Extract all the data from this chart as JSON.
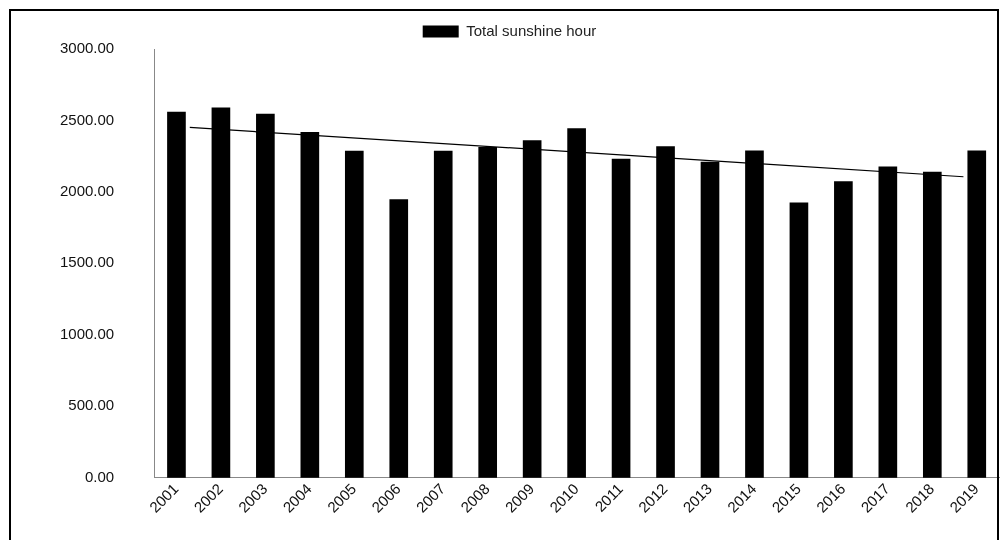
{
  "chart_data": {
    "type": "bar",
    "x": [
      2001,
      2002,
      2003,
      2004,
      2005,
      2006,
      2007,
      2008,
      2009,
      2010,
      2011,
      2012,
      2013,
      2014,
      2015,
      2016,
      2017,
      2018,
      2019
    ],
    "series": [
      {
        "name": "Total sunshine hour",
        "color": "#000000",
        "values": [
          2558,
          2589,
          2544,
          2417,
          2285,
          1946,
          2285,
          2311,
          2359,
          2443,
          2230,
          2317,
          2208,
          2287,
          1924,
          2072,
          2176,
          2139,
          2287
        ]
      },
      {
        "type": "line",
        "color": "#000000",
        "x": [
          2001.3,
          2018.7
        ],
        "values": [
          2451,
          2106
        ]
      }
    ],
    "xlim": [
      2000.5,
      2019.5
    ],
    "xticks": [
      2001,
      2002,
      2003,
      2004,
      2005,
      2006,
      2007,
      2008,
      2009,
      2010,
      2011,
      2012,
      2013,
      2014,
      2015,
      2016,
      2017,
      2018,
      2019
    ],
    "ylim": [
      0,
      3000
    ],
    "yticks": [
      {
        "value": 0,
        "label": "0.00"
      },
      {
        "value": 500,
        "label": "500.00"
      },
      {
        "value": 1000,
        "label": "1000.00"
      },
      {
        "value": 1500,
        "label": "1500.00"
      },
      {
        "value": 2000,
        "label": "2000.00"
      },
      {
        "value": 2500,
        "label": "2500.00"
      },
      {
        "value": 3000,
        "label": "3000.00"
      }
    ],
    "grid": false,
    "legend": "top",
    "marker": "none"
  }
}
